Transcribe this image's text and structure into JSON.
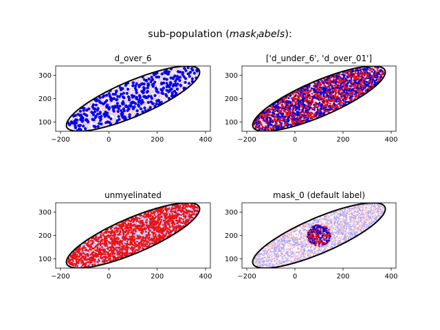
{
  "figure": {
    "suptitle_prefix": "sub-population (",
    "suptitle_math": "mask",
    "suptitle_sub": "l",
    "suptitle_math2": "abels",
    "suptitle_suffix": "):"
  },
  "chart_data": [
    {
      "type": "scatter",
      "title": "d_over_6",
      "xlim": [
        -220,
        420
      ],
      "ylim": [
        60,
        340
      ],
      "xticks": [
        -200,
        0,
        200,
        400
      ],
      "yticks": [
        100,
        200,
        300
      ],
      "ellipse": {
        "cx": 100,
        "cy": 200,
        "a": 300,
        "b": 75,
        "angle_deg": 24
      },
      "background_colors": [
        "#ffcccc",
        "#ccccff"
      ],
      "highlight": {
        "mode": "sparse",
        "colors": [
          "#0000ee"
        ],
        "count": 380
      }
    },
    {
      "type": "scatter",
      "title": "['d_under_6', 'd_over_01']",
      "xlim": [
        -220,
        420
      ],
      "ylim": [
        60,
        340
      ],
      "xticks": [
        -200,
        0,
        200,
        400
      ],
      "yticks": [
        100,
        200,
        300
      ],
      "ellipse": {
        "cx": 100,
        "cy": 200,
        "a": 300,
        "b": 75,
        "angle_deg": 24
      },
      "background_colors": [
        "#ffcccc",
        "#ccccff"
      ],
      "highlight": {
        "mode": "dense",
        "colors": [
          "#ee1111",
          "#0000dd"
        ],
        "count": 2200
      }
    },
    {
      "type": "scatter",
      "title": "unmyelinated",
      "xlim": [
        -220,
        420
      ],
      "ylim": [
        60,
        340
      ],
      "xticks": [
        -200,
        0,
        200,
        400
      ],
      "yticks": [
        100,
        200,
        300
      ],
      "ellipse": {
        "cx": 100,
        "cy": 200,
        "a": 300,
        "b": 75,
        "angle_deg": 24
      },
      "background_colors": [
        "#aaaaff",
        "#ccccff"
      ],
      "highlight": {
        "mode": "dense",
        "colors": [
          "#ee1111"
        ],
        "count": 1500
      }
    },
    {
      "type": "scatter",
      "title": "mask_0 (default label)",
      "xlim": [
        -220,
        420
      ],
      "ylim": [
        60,
        340
      ],
      "xticks": [
        -200,
        0,
        200,
        400
      ],
      "yticks": [
        100,
        200,
        300
      ],
      "ellipse": {
        "cx": 100,
        "cy": 200,
        "a": 300,
        "b": 75,
        "angle_deg": 24
      },
      "background_colors": [
        "#ffcccc",
        "#aaaaff"
      ],
      "highlight": {
        "mode": "disk",
        "colors": [
          "#ee1111",
          "#0000dd"
        ],
        "count": 220,
        "disk_center": [
          100,
          200
        ],
        "disk_radius": 48
      }
    }
  ]
}
